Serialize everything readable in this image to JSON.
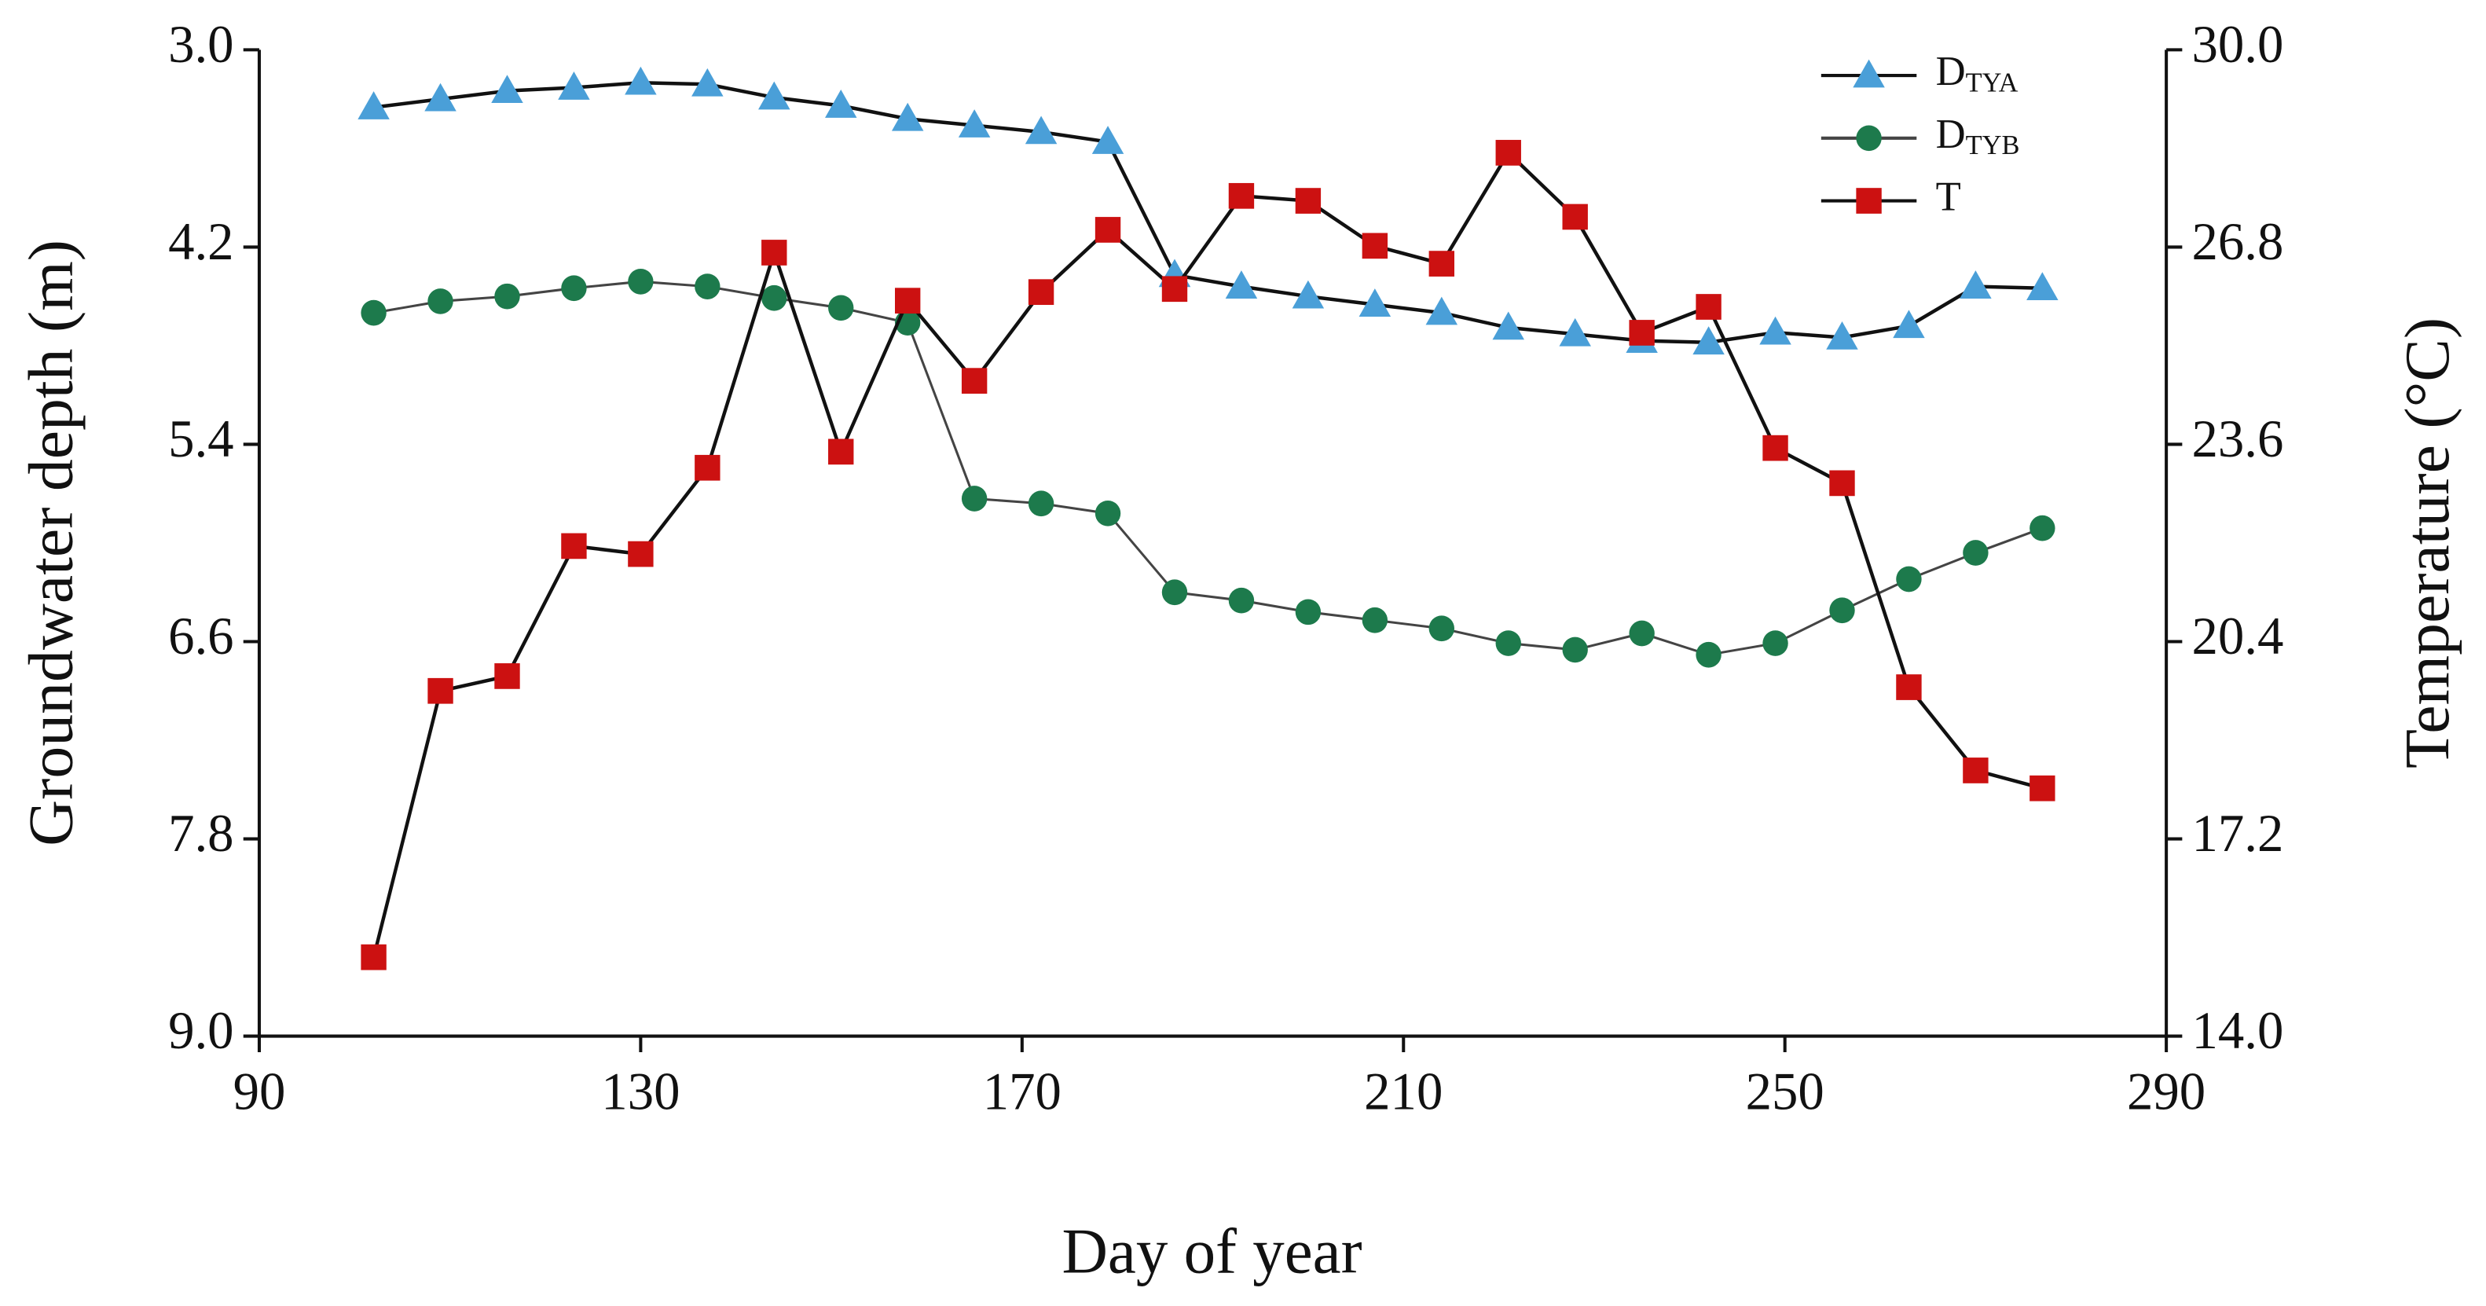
{
  "chart_data": {
    "type": "line",
    "x_label": "Day of year",
    "y_label": "Groundwater depth (m)",
    "y2_label": "Temperature (°C)",
    "x": [
      102,
      109,
      116,
      123,
      130,
      137,
      144,
      151,
      158,
      165,
      172,
      179,
      186,
      193,
      200,
      207,
      214,
      221,
      228,
      235,
      242,
      249,
      256,
      263,
      270,
      277
    ],
    "xlim": [
      90,
      290
    ],
    "xticks": [
      90,
      130,
      170,
      210,
      250,
      290
    ],
    "ylim": [
      9,
      3
    ],
    "yticks": [
      {
        "value": 3,
        "label": "3.0"
      },
      4.2,
      5.4,
      6.6,
      7.8,
      {
        "value": 9,
        "label": "9.0"
      }
    ],
    "y2lim": [
      14,
      30
    ],
    "y2ticks": [
      {
        "value": 30,
        "label": "30.0"
      },
      26.8,
      23.6,
      20.4,
      17.2,
      {
        "value": 14,
        "label": "14.0"
      }
    ],
    "legend": "upper right",
    "series": [
      {
        "name": "DTYA",
        "color": "#4a9fd8",
        "line_color": "#111111",
        "marker": "triangle",
        "values": [
          3.35,
          3.3,
          3.25,
          3.23,
          3.2,
          3.21,
          3.29,
          3.34,
          3.42,
          3.46,
          3.5,
          3.56,
          4.37,
          4.44,
          4.5,
          4.55,
          4.6,
          4.69,
          4.73,
          4.77,
          4.78,
          4.72,
          4.75,
          4.68,
          4.44,
          4.45
        ]
      },
      {
        "name": "DTYB",
        "color": "#1d7a4c",
        "line_color": "#444444",
        "marker": "circle",
        "values": [
          4.6,
          4.53,
          4.5,
          4.45,
          4.41,
          4.44,
          4.51,
          4.57,
          4.66,
          5.73,
          5.76,
          5.82,
          6.3,
          6.35,
          6.42,
          6.47,
          6.52,
          6.61,
          6.65,
          6.55,
          6.68,
          6.61,
          6.41,
          6.22,
          6.06,
          5.91
        ]
      },
      {
        "name": "T",
        "color": "#cc1111",
        "line_color": "#111111",
        "marker": "square",
        "axis": "y2",
        "values": [
          15.28,
          19.6,
          19.84,
          21.95,
          21.82,
          23.22,
          26.71,
          23.48,
          25.93,
          24.63,
          26.07,
          27.08,
          26.12,
          27.63,
          27.55,
          26.82,
          26.53,
          28.33,
          27.29,
          25.41,
          25.83,
          23.54,
          22.97,
          19.66,
          18.31,
          18.02
        ]
      }
    ]
  }
}
